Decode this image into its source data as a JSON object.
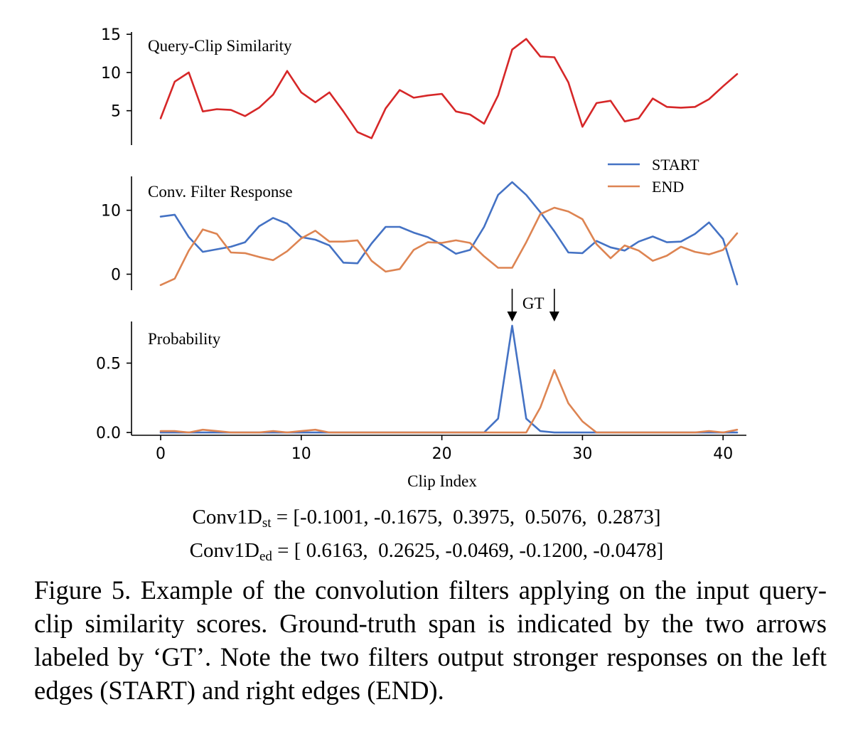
{
  "chart_data": [
    {
      "type": "line",
      "panel_label": "Query-Clip Similarity",
      "x": [
        0,
        1,
        2,
        3,
        4,
        5,
        6,
        7,
        8,
        9,
        10,
        11,
        12,
        13,
        14,
        15,
        16,
        17,
        18,
        19,
        20,
        21,
        22,
        23,
        24,
        25,
        26,
        27,
        28,
        29,
        30,
        31,
        32,
        33,
        34,
        35,
        36,
        37,
        38,
        39,
        40,
        41
      ],
      "series": [
        {
          "name": "similarity",
          "color": "#d62728",
          "values": [
            4.0,
            8.8,
            10.0,
            4.9,
            5.2,
            5.1,
            4.3,
            5.4,
            7.1,
            10.2,
            7.4,
            6.1,
            7.4,
            4.9,
            2.2,
            1.4,
            5.3,
            7.7,
            6.7,
            7.0,
            7.2,
            4.9,
            4.5,
            3.3,
            7.0,
            13.0,
            14.4,
            12.1,
            12.0,
            8.7,
            2.9,
            6.0,
            6.3,
            3.6,
            4.0,
            6.6,
            5.5,
            5.4,
            5.5,
            6.5,
            8.2,
            9.8
          ]
        }
      ],
      "ylim": [
        0.5,
        15.3
      ],
      "yticks": [
        5,
        10,
        15
      ],
      "ytick_labels": [
        "5",
        "10",
        "15"
      ]
    },
    {
      "type": "line",
      "panel_label": "Conv. Filter Response",
      "x": [
        0,
        1,
        2,
        3,
        4,
        5,
        6,
        7,
        8,
        9,
        10,
        11,
        12,
        13,
        14,
        15,
        16,
        17,
        18,
        19,
        20,
        21,
        22,
        23,
        24,
        25,
        26,
        27,
        28,
        29,
        30,
        31,
        32,
        33,
        34,
        35,
        36,
        37,
        38,
        39,
        40,
        41
      ],
      "series": [
        {
          "name": "START",
          "color": "#4472c4",
          "values": [
            9.0,
            9.3,
            5.8,
            3.5,
            3.9,
            4.3,
            5.0,
            7.5,
            8.8,
            7.9,
            5.8,
            5.4,
            4.5,
            1.8,
            1.7,
            4.8,
            7.4,
            7.4,
            6.5,
            5.8,
            4.6,
            3.2,
            3.8,
            7.4,
            12.4,
            14.4,
            12.4,
            9.7,
            6.7,
            3.4,
            3.3,
            5.2,
            4.2,
            3.7,
            5.1,
            5.9,
            5.0,
            5.1,
            6.3,
            8.1,
            5.5,
            -1.6
          ]
        },
        {
          "name": "END",
          "color": "#dd8452",
          "values": [
            -1.7,
            -0.7,
            3.7,
            7.0,
            6.3,
            3.4,
            3.3,
            2.7,
            2.2,
            3.6,
            5.6,
            6.8,
            5.1,
            5.1,
            5.3,
            2.1,
            0.4,
            0.8,
            3.8,
            5.0,
            4.9,
            5.3,
            4.9,
            2.8,
            1.0,
            1.0,
            5.0,
            9.4,
            10.4,
            9.8,
            8.6,
            4.7,
            2.5,
            4.5,
            3.7,
            2.1,
            2.9,
            4.3,
            3.5,
            3.1,
            3.8,
            6.4
          ]
        }
      ],
      "ylim": [
        -2.5,
        15.3
      ],
      "yticks": [
        0,
        10
      ],
      "ytick_labels": [
        "0",
        "10"
      ],
      "legend": {
        "position": "top-right",
        "entries": [
          "START",
          "END"
        ]
      },
      "annotation": {
        "text": "GT",
        "arrows_at_x": [
          25,
          28
        ]
      }
    },
    {
      "type": "line",
      "panel_label": "Probability",
      "x": [
        0,
        1,
        2,
        3,
        4,
        5,
        6,
        7,
        8,
        9,
        10,
        11,
        12,
        13,
        14,
        15,
        16,
        17,
        18,
        19,
        20,
        21,
        22,
        23,
        24,
        25,
        26,
        27,
        28,
        29,
        30,
        31,
        32,
        33,
        34,
        35,
        36,
        37,
        38,
        39,
        40,
        41
      ],
      "series": [
        {
          "name": "START",
          "color": "#4472c4",
          "values": [
            0,
            0,
            0,
            0,
            0,
            0,
            0,
            0,
            0,
            0,
            0,
            0,
            0,
            0,
            0,
            0,
            0,
            0,
            0,
            0,
            0,
            0,
            0,
            0,
            0.1,
            0.77,
            0.1,
            0.01,
            0,
            0,
            0,
            0,
            0,
            0,
            0,
            0,
            0,
            0,
            0,
            0,
            0,
            0
          ]
        },
        {
          "name": "END",
          "color": "#dd8452",
          "values": [
            0.01,
            0.01,
            0,
            0.02,
            0.01,
            0,
            0,
            0,
            0.01,
            0,
            0.01,
            0.02,
            0,
            0,
            0,
            0,
            0,
            0,
            0,
            0,
            0,
            0,
            0,
            0,
            0,
            0,
            0,
            0.18,
            0.45,
            0.21,
            0.08,
            0,
            0,
            0,
            0,
            0,
            0,
            0,
            0,
            0.01,
            0,
            0.02
          ]
        }
      ],
      "ylim": [
        -0.02,
        0.8
      ],
      "yticks": [
        0.0,
        0.5
      ],
      "ytick_labels": [
        "0.0",
        "0.5"
      ],
      "xlim": [
        -1.5,
        42.3
      ],
      "xticks": [
        0,
        10,
        20,
        30,
        40
      ],
      "xtick_labels": [
        "0",
        "10",
        "20",
        "30",
        "40"
      ],
      "xlabel": "Clip Index"
    }
  ],
  "equations": [
    {
      "name": "Conv1D",
      "sub": "st",
      "values": "= [-0.1001, -0.1675,  0.3975,  0.5076,  0.2873]"
    },
    {
      "name": "Conv1D",
      "sub": "ed",
      "values": "= [ 0.6163,  0.2625, -0.0469, -0.1200, -0.0478]"
    }
  ],
  "caption": "Figure 5. Example of the convolution filters applying on the input query-clip similarity scores. Ground-truth span is indicated by the two arrows labeled by ‘GT’. Note the two filters output stronger responses on the left edges (START) and right edges (END)."
}
